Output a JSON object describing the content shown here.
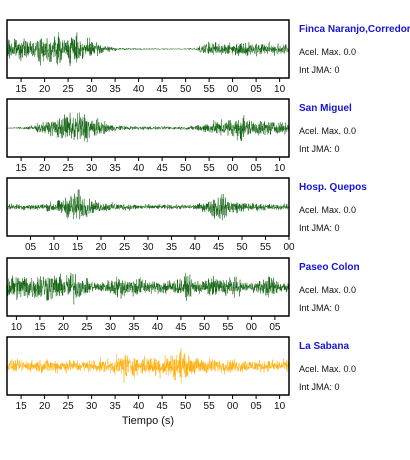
{
  "chart_data": {
    "type": "line",
    "xlabel": "Tiempo (s)",
    "accel_label": "Acel. Max.",
    "int_label": "Int JMA:",
    "panels": [
      {
        "station": "Finca Naranjo,Corredores",
        "accel_max": "0.0",
        "jma": "0",
        "color": "#0a5f0a",
        "tick_labels": [
          "15",
          "20",
          "25",
          "30",
          "35",
          "40",
          "45",
          "50",
          "55",
          "00",
          "05",
          "10"
        ],
        "tick_start_sec": 15,
        "x_range_sec": [
          12,
          72
        ],
        "envelope_sec": [
          [
            12,
            0.55
          ],
          [
            14,
            0.5
          ],
          [
            16,
            0.45
          ],
          [
            18,
            0.4
          ],
          [
            19,
            0.95
          ],
          [
            20,
            0.55
          ],
          [
            22,
            0.7
          ],
          [
            23,
            0.85
          ],
          [
            24,
            0.6
          ],
          [
            25,
            0.75
          ],
          [
            27,
            0.7
          ],
          [
            28,
            0.5
          ],
          [
            30,
            0.45
          ],
          [
            32,
            0.25
          ],
          [
            34,
            0.12
          ],
          [
            36,
            0.06
          ],
          [
            40,
            0.04
          ],
          [
            48,
            0.03
          ],
          [
            52,
            0.05
          ],
          [
            54,
            0.3
          ],
          [
            56,
            0.35
          ],
          [
            58,
            0.3
          ],
          [
            62,
            0.35
          ],
          [
            64,
            0.3
          ],
          [
            67,
            0.32
          ],
          [
            70,
            0.3
          ],
          [
            72,
            0.3
          ]
        ]
      },
      {
        "station": "San Miguel",
        "accel_max": "0.0",
        "jma": "0",
        "color": "#0a5f0a",
        "tick_labels": [
          "15",
          "20",
          "25",
          "30",
          "35",
          "40",
          "45",
          "50",
          "55",
          "00",
          "05",
          "10"
        ],
        "tick_start_sec": 15,
        "x_range_sec": [
          12,
          72
        ],
        "envelope_sec": [
          [
            12,
            0.03
          ],
          [
            14,
            0.04
          ],
          [
            16,
            0.08
          ],
          [
            18,
            0.18
          ],
          [
            20,
            0.3
          ],
          [
            22,
            0.45
          ],
          [
            24,
            0.65
          ],
          [
            26,
            0.8
          ],
          [
            27,
            0.9
          ],
          [
            28,
            0.85
          ],
          [
            30,
            0.6
          ],
          [
            32,
            0.35
          ],
          [
            34,
            0.2
          ],
          [
            36,
            0.12
          ],
          [
            40,
            0.1
          ],
          [
            45,
            0.08
          ],
          [
            50,
            0.08
          ],
          [
            52,
            0.14
          ],
          [
            55,
            0.3
          ],
          [
            58,
            0.4
          ],
          [
            61,
            0.5
          ],
          [
            62,
            0.9
          ],
          [
            63,
            0.45
          ],
          [
            66,
            0.4
          ],
          [
            68,
            0.35
          ],
          [
            70,
            0.3
          ],
          [
            72,
            0.25
          ]
        ]
      },
      {
        "station": "Hosp. Quepos",
        "accel_max": "0.0",
        "jma": "0",
        "color": "#0a5f0a",
        "tick_labels": [
          "05",
          "10",
          "15",
          "20",
          "25",
          "30",
          "35",
          "40",
          "45",
          "50",
          "55",
          "00"
        ],
        "tick_start_sec": 5,
        "x_range_sec": [
          0,
          60
        ],
        "envelope_sec": [
          [
            0,
            0.15
          ],
          [
            4,
            0.15
          ],
          [
            8,
            0.18
          ],
          [
            10,
            0.3
          ],
          [
            12,
            0.4
          ],
          [
            14,
            0.75
          ],
          [
            15,
            0.95
          ],
          [
            16,
            0.6
          ],
          [
            18,
            0.35
          ],
          [
            20,
            0.25
          ],
          [
            24,
            0.18
          ],
          [
            28,
            0.15
          ],
          [
            32,
            0.12
          ],
          [
            36,
            0.12
          ],
          [
            40,
            0.14
          ],
          [
            43,
            0.3
          ],
          [
            45,
            0.85
          ],
          [
            46,
            0.6
          ],
          [
            48,
            0.35
          ],
          [
            50,
            0.25
          ],
          [
            54,
            0.18
          ],
          [
            58,
            0.15
          ],
          [
            60,
            0.15
          ]
        ]
      },
      {
        "station": "Paseo Colon",
        "accel_max": "0.0",
        "jma": "0",
        "color": "#0a5f0a",
        "tick_labels": [
          "10",
          "15",
          "20",
          "25",
          "30",
          "35",
          "40",
          "45",
          "50",
          "55",
          "00",
          "05"
        ],
        "tick_start_sec": 10,
        "x_range_sec": [
          8,
          68
        ],
        "envelope_sec": [
          [
            8,
            0.75
          ],
          [
            10,
            0.65
          ],
          [
            12,
            0.7
          ],
          [
            14,
            0.6
          ],
          [
            16,
            0.8
          ],
          [
            18,
            0.7
          ],
          [
            20,
            0.55
          ],
          [
            22,
            0.9
          ],
          [
            24,
            0.45
          ],
          [
            26,
            0.3
          ],
          [
            28,
            0.25
          ],
          [
            30,
            0.4
          ],
          [
            32,
            0.6
          ],
          [
            34,
            0.4
          ],
          [
            36,
            0.55
          ],
          [
            38,
            0.35
          ],
          [
            40,
            0.3
          ],
          [
            42,
            0.45
          ],
          [
            44,
            0.35
          ],
          [
            46,
            0.6
          ],
          [
            48,
            0.4
          ],
          [
            50,
            0.35
          ],
          [
            52,
            0.55
          ],
          [
            54,
            0.4
          ],
          [
            56,
            0.6
          ],
          [
            58,
            0.3
          ],
          [
            60,
            0.25
          ],
          [
            62,
            0.35
          ],
          [
            64,
            0.6
          ],
          [
            66,
            0.3
          ],
          [
            68,
            0.3
          ]
        ]
      },
      {
        "station": "La Sabana",
        "accel_max": "0.0",
        "jma": "0",
        "color": "#ffaa00",
        "tick_labels": [
          "15",
          "20",
          "25",
          "30",
          "35",
          "40",
          "45",
          "50",
          "55",
          "00",
          "05",
          "10"
        ],
        "tick_start_sec": 15,
        "x_range_sec": [
          12,
          72
        ],
        "envelope_sec": [
          [
            12,
            0.3
          ],
          [
            16,
            0.3
          ],
          [
            20,
            0.35
          ],
          [
            24,
            0.35
          ],
          [
            28,
            0.3
          ],
          [
            32,
            0.35
          ],
          [
            35,
            0.4
          ],
          [
            36,
            0.6
          ],
          [
            37,
            0.9
          ],
          [
            38,
            0.55
          ],
          [
            40,
            0.45
          ],
          [
            43,
            0.5
          ],
          [
            46,
            0.6
          ],
          [
            48,
            0.7
          ],
          [
            49,
            0.95
          ],
          [
            50,
            0.55
          ],
          [
            52,
            0.45
          ],
          [
            55,
            0.4
          ],
          [
            58,
            0.35
          ],
          [
            62,
            0.35
          ],
          [
            66,
            0.3
          ],
          [
            70,
            0.3
          ],
          [
            72,
            0.3
          ]
        ]
      }
    ]
  }
}
